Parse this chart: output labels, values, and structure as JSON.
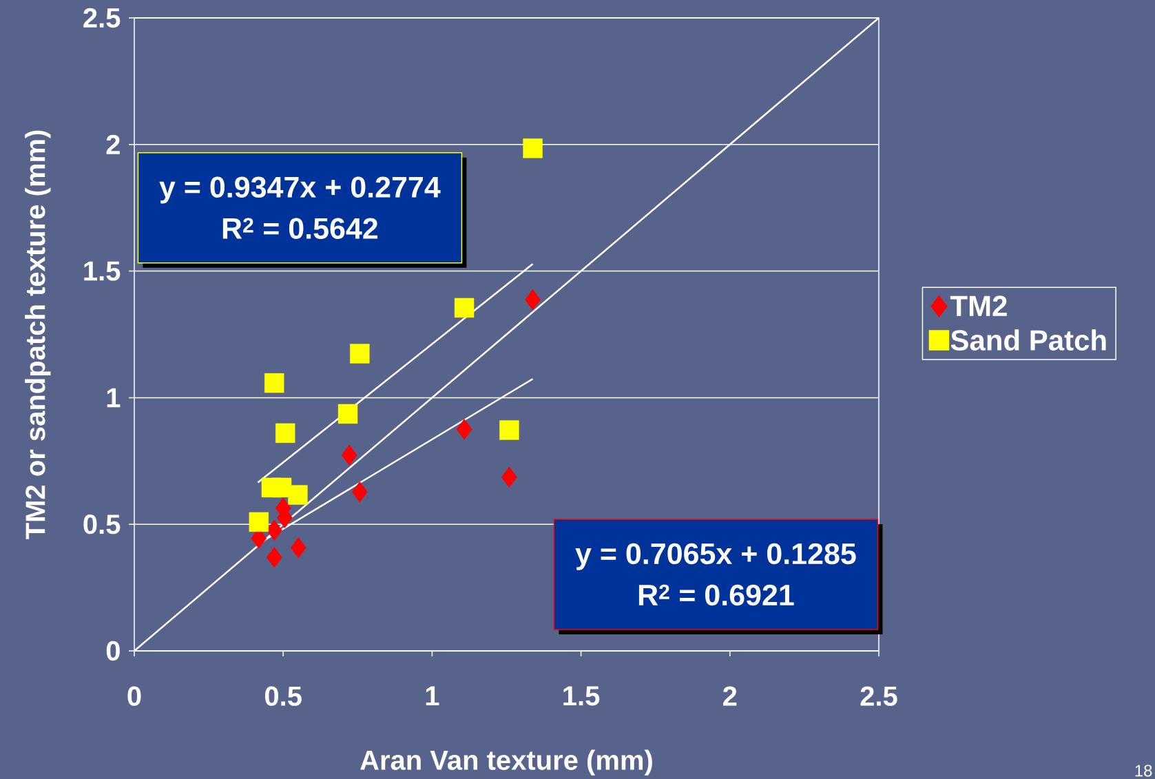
{
  "chart_data": {
    "type": "scatter",
    "xlabel": "Aran Van texture (mm)",
    "ylabel": "TM2 or sandpatch texture (mm)",
    "xlim": [
      0,
      2.5
    ],
    "ylim": [
      0,
      2.5
    ],
    "xticks": [
      0,
      0.5,
      1,
      1.5,
      2,
      2.5
    ],
    "yticks": [
      0,
      0.5,
      1,
      1.5,
      2,
      2.5
    ],
    "grid": "y",
    "legend": "right",
    "series": [
      {
        "name": "TM2",
        "color": "#ff0000",
        "marker": "diamond",
        "x": [
          0.47,
          0.551,
          0.418,
          0.47,
          0.5,
          0.505,
          0.722,
          0.757,
          1.108,
          1.259,
          1.338
        ],
        "values": [
          0.369,
          0.407,
          0.445,
          0.477,
          0.564,
          0.526,
          0.773,
          0.628,
          0.875,
          0.686,
          1.387
        ]
      },
      {
        "name": "Sand Patch",
        "color": "#ffff00",
        "marker": "square",
        "x": [
          0.418,
          0.46,
          0.495,
          0.549,
          0.507,
          0.47,
          0.717,
          0.757,
          1.108,
          1.259,
          1.338
        ],
        "values": [
          0.509,
          0.645,
          0.645,
          0.616,
          0.86,
          1.058,
          0.936,
          1.174,
          1.355,
          0.872,
          1.985
        ]
      },
      {
        "type": "line",
        "color": "#ffffff",
        "marker": "none",
        "x": [
          0.415,
          1.338
        ],
        "values": [
          0.665,
          1.528
        ]
      },
      {
        "type": "line",
        "color": "#ffffff",
        "marker": "none",
        "x": [
          0.415,
          1.338
        ],
        "values": [
          0.422,
          1.074
        ]
      },
      {
        "type": "line",
        "color": "#ffffff",
        "marker": "none",
        "x": [
          0,
          2.5
        ],
        "values": [
          0,
          2.5
        ]
      }
    ],
    "annotations": [
      "y = 0.9347x + 0.2774",
      "R$^{2}$ = 0.5642",
      "y = 0.7065x + 0.1285",
      "R$^{2}$ = 0.6921",
      "18"
    ]
  }
}
